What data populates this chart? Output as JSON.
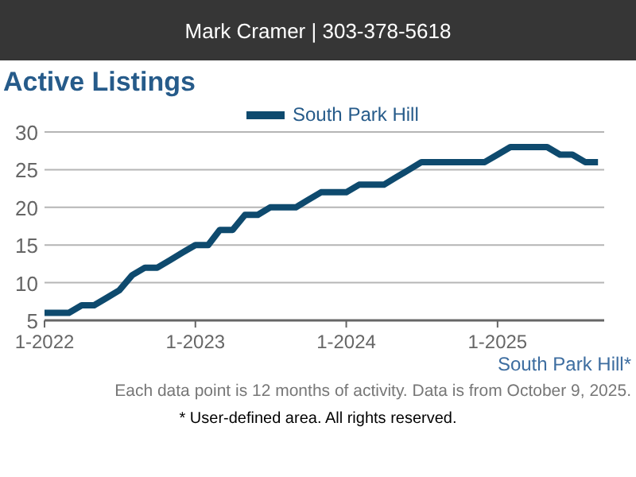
{
  "chart_data": {
    "type": "line",
    "title": "Active Listings",
    "subtitle": "Mark Cramer | 303-378-5618",
    "x": [
      "2022-01",
      "2022-02",
      "2022-03",
      "2022-04",
      "2022-05",
      "2022-06",
      "2022-07",
      "2022-08",
      "2022-09",
      "2022-10",
      "2022-11",
      "2022-12",
      "2023-01",
      "2023-02",
      "2023-03",
      "2023-04",
      "2023-05",
      "2023-06",
      "2023-07",
      "2023-08",
      "2023-09",
      "2023-10",
      "2023-11",
      "2023-12",
      "2024-01",
      "2024-02",
      "2024-03",
      "2024-04",
      "2024-05",
      "2024-06",
      "2024-07",
      "2024-08",
      "2024-09",
      "2024-10",
      "2024-11",
      "2024-12",
      "2025-01",
      "2025-02",
      "2025-03",
      "2025-04",
      "2025-05",
      "2025-06",
      "2025-07",
      "2025-08",
      "2025-09"
    ],
    "series": [
      {
        "name": "South Park Hill",
        "color": "#0e4a6e",
        "values": [
          6,
          6,
          6,
          7,
          7,
          8,
          9,
          11,
          12,
          12,
          13,
          14,
          15,
          15,
          17,
          17,
          19,
          19,
          20,
          20,
          20,
          21,
          22,
          22,
          22,
          23,
          23,
          23,
          24,
          25,
          26,
          26,
          26,
          26,
          26,
          26,
          27,
          28,
          28,
          28,
          28,
          27,
          27,
          26,
          26
        ]
      }
    ],
    "xlim": [
      "2022-01",
      "2025-09-16"
    ],
    "xticks": [
      {
        "value": "2022-01",
        "label": "1-2022"
      },
      {
        "value": "2023-01",
        "label": "1-2023"
      },
      {
        "value": "2024-01",
        "label": "1-2024"
      },
      {
        "value": "2025-01",
        "label": "1-2025"
      }
    ],
    "ylim": [
      5,
      30
    ],
    "yticks": [
      5,
      10,
      15,
      20,
      25,
      30
    ],
    "grid": "y",
    "legend": "top",
    "marker": "none",
    "line_style": "solid",
    "annotations": [
      "South Park Hill*",
      "Each data point is 12 months of activity. Data is from October 9, 2025.",
      "* User-defined area. All rights reserved."
    ]
  }
}
